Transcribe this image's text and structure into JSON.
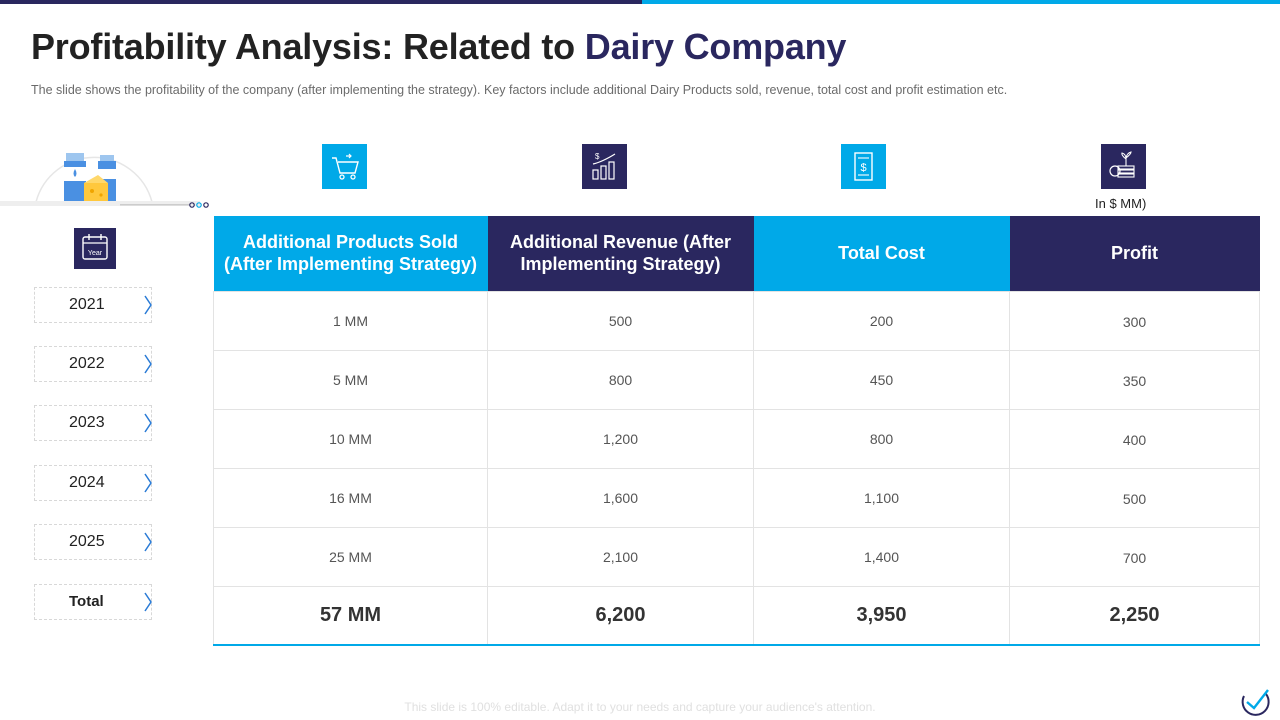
{
  "slide": {
    "title_main": "Profitability Analysis: Related to ",
    "title_accent": "Dairy Company",
    "subtitle": "The slide shows the profitability of the company (after implementing the strategy). Key factors include additional Dairy Products sold, revenue,  total cost and profit  estimation etc.",
    "unit_note": "In $ MM)",
    "footer": "This slide is 100% editable. Adapt it to your needs and capture your audience's attention."
  },
  "year_badge": {
    "label": "Year"
  },
  "years": [
    {
      "label": "2021"
    },
    {
      "label": "2022"
    },
    {
      "label": "2023"
    },
    {
      "label": "2024"
    },
    {
      "label": "2025"
    },
    {
      "label": "Total"
    }
  ],
  "icons": [
    "shopping-cart-icon",
    "revenue-chart-icon",
    "cost-document-icon",
    "profit-coins-icon"
  ],
  "table": {
    "headers": [
      "Additional Products Sold (After Implementing Strategy)",
      "Additional Revenue (After Implementing Strategy)",
      "Total Cost",
      "Profit"
    ],
    "rows": [
      [
        "1 MM",
        "500",
        "200",
        "300"
      ],
      [
        "5 MM",
        "800",
        "450",
        "350"
      ],
      [
        "10 MM",
        "1,200",
        "800",
        "400"
      ],
      [
        "16 MM",
        "1,600",
        "1,100",
        "500"
      ],
      [
        "25 MM",
        "2,100",
        "1,400",
        "700"
      ]
    ],
    "totals": [
      "57 MM",
      "6,200",
      "3,950",
      "2,250"
    ]
  },
  "colors": {
    "dark": "#2a275f",
    "light": "#00a9e8"
  }
}
